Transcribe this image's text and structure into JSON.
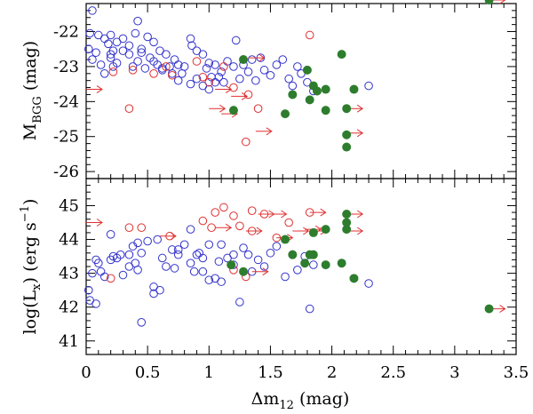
{
  "chart_data": [
    {
      "type": "scatter",
      "panel": "top",
      "xlabel": "",
      "ylabel": "M_BGG (mag)",
      "ylabel_parts": {
        "main": "M",
        "sub": "BGG",
        "unit": "(mag)"
      },
      "xlim": [
        0,
        3.5
      ],
      "ylim": [
        -21.2,
        -26.2
      ],
      "y_inverted": true,
      "yticks": [
        -22,
        -23,
        -24,
        -25,
        -26
      ],
      "ytick_labels": [
        "-22",
        "-23",
        "-24",
        "-25",
        "-26"
      ],
      "xticks_shown": false,
      "colors": {
        "blue": "#3333cc",
        "red": "#e03030",
        "green": "#2e7d2e"
      },
      "series": [
        {
          "marker": "open-circle",
          "color": "blue",
          "points": [
            [
              0.05,
              -21.4
            ],
            [
              0.03,
              -22.05
            ],
            [
              0.1,
              -22.1
            ],
            [
              0.15,
              -22.2
            ],
            [
              0.18,
              -22.35
            ],
            [
              0.2,
              -22.1
            ],
            [
              0.22,
              -22.55
            ],
            [
              0.25,
              -22.3
            ],
            [
              0.3,
              -22.2
            ],
            [
              0.35,
              -22.4
            ],
            [
              0.4,
              -22.05
            ],
            [
              0.42,
              -21.7
            ],
            [
              0.45,
              -22.5
            ],
            [
              0.5,
              -22.15
            ],
            [
              0.55,
              -22.3
            ],
            [
              0.02,
              -22.5
            ],
            [
              0.05,
              -22.8
            ],
            [
              0.08,
              -22.6
            ],
            [
              0.12,
              -22.95
            ],
            [
              0.15,
              -23.2
            ],
            [
              0.2,
              -22.75
            ],
            [
              0.25,
              -22.9
            ],
            [
              0.3,
              -22.55
            ],
            [
              0.35,
              -22.65
            ],
            [
              0.38,
              -23.0
            ],
            [
              0.42,
              -22.85
            ],
            [
              0.45,
              -22.6
            ],
            [
              0.48,
              -23.05
            ],
            [
              0.52,
              -22.75
            ],
            [
              0.55,
              -22.85
            ],
            [
              0.58,
              -22.95
            ],
            [
              0.6,
              -22.55
            ],
            [
              0.62,
              -23.05
            ],
            [
              0.65,
              -22.65
            ],
            [
              0.68,
              -23.0
            ],
            [
              0.72,
              -22.8
            ],
            [
              0.75,
              -22.95
            ],
            [
              0.78,
              -23.2
            ],
            [
              0.8,
              -23.0
            ],
            [
              0.85,
              -22.2
            ],
            [
              0.86,
              -22.4
            ],
            [
              0.9,
              -22.55
            ],
            [
              0.95,
              -22.65
            ],
            [
              0.98,
              -23.05
            ],
            [
              1.0,
              -22.9
            ],
            [
              1.02,
              -23.3
            ],
            [
              1.05,
              -22.95
            ],
            [
              1.08,
              -23.3
            ],
            [
              1.1,
              -23.15
            ],
            [
              1.12,
              -23.45
            ],
            [
              1.15,
              -22.85
            ],
            [
              1.2,
              -23.0
            ],
            [
              1.22,
              -22.25
            ],
            [
              1.25,
              -23.35
            ],
            [
              1.28,
              -22.95
            ],
            [
              1.32,
              -23.15
            ],
            [
              1.35,
              -22.8
            ],
            [
              1.38,
              -23.4
            ],
            [
              1.42,
              -22.75
            ],
            [
              1.45,
              -23.1
            ],
            [
              1.5,
              -23.25
            ],
            [
              1.55,
              -22.95
            ],
            [
              1.6,
              -22.8
            ],
            [
              1.65,
              -23.35
            ],
            [
              1.68,
              -23.55
            ],
            [
              1.72,
              -23.0
            ],
            [
              1.75,
              -23.2
            ],
            [
              1.8,
              -23.45
            ],
            [
              1.85,
              -23.7
            ],
            [
              0.7,
              -23.2
            ],
            [
              0.75,
              -23.4
            ],
            [
              0.85,
              -23.5
            ],
            [
              0.9,
              -23.35
            ],
            [
              0.95,
              -23.55
            ],
            [
              1.0,
              -23.65
            ],
            [
              1.05,
              -23.45
            ],
            [
              0.62,
              -23.1
            ],
            [
              2.3,
              -23.55
            ],
            [
              0.2,
              -22.65
            ],
            [
              0.22,
              -23.0
            ]
          ]
        },
        {
          "marker": "open-circle",
          "color": "red",
          "points": [
            [
              0.22,
              -23.15
            ],
            [
              0.38,
              -23.1
            ],
            [
              0.55,
              -23.2
            ],
            [
              0.65,
              -23.0
            ],
            [
              0.7,
              -23.25
            ],
            [
              0.9,
              -22.85
            ],
            [
              0.95,
              -23.3
            ],
            [
              1.0,
              -23.45
            ],
            [
              1.12,
              -23.0
            ],
            [
              1.32,
              -23.8
            ],
            [
              1.4,
              -24.2
            ],
            [
              1.3,
              -25.15
            ],
            [
              0.35,
              -24.2
            ],
            [
              1.82,
              -22.1
            ],
            [
              1.2,
              -23.6
            ]
          ]
        },
        {
          "marker": "red-arrow",
          "points": [
            [
              0.0,
              -23.65
            ],
            [
              1.05,
              -23.65
            ],
            [
              1.0,
              -24.2
            ],
            [
              1.18,
              -23.85
            ],
            [
              1.1,
              -24.35
            ],
            [
              1.32,
              -22.75
            ],
            [
              1.38,
              -24.85
            ],
            [
              2.12,
              -24.2
            ],
            [
              2.12,
              -24.9
            ],
            [
              3.28,
              -21.1
            ]
          ]
        },
        {
          "marker": "filled-circle",
          "color": "green",
          "points": [
            [
              1.2,
              -24.25
            ],
            [
              1.28,
              -22.8
            ],
            [
              1.62,
              -24.35
            ],
            [
              1.68,
              -23.8
            ],
            [
              1.8,
              -23.1
            ],
            [
              1.82,
              -23.95
            ],
            [
              1.85,
              -23.55
            ],
            [
              1.88,
              -23.7
            ],
            [
              1.95,
              -24.25
            ],
            [
              1.95,
              -23.65
            ],
            [
              2.08,
              -22.65
            ],
            [
              2.12,
              -24.2
            ],
            [
              2.12,
              -24.95
            ],
            [
              2.12,
              -25.3
            ],
            [
              2.18,
              -23.65
            ],
            [
              3.28,
              -21.1
            ]
          ]
        }
      ]
    },
    {
      "type": "scatter",
      "panel": "bottom",
      "xlabel": "Δm12 (mag)",
      "xlabel_parts": {
        "main": "Δm",
        "sub": "12",
        "unit": "(mag)"
      },
      "ylabel": "log(Lx) (erg s-1)",
      "ylabel_parts": {
        "pre": "log(L",
        "sub": "x",
        "mid": ") (erg s",
        "sup": "−1",
        "post": ")"
      },
      "xlim": [
        0,
        3.5
      ],
      "ylim": [
        40.6,
        45.8
      ],
      "xticks": [
        0,
        0.5,
        1,
        1.5,
        2,
        2.5,
        3,
        3.5
      ],
      "xtick_labels": [
        "0",
        "0.5",
        "1",
        "1.5",
        "2",
        "2.5",
        "3",
        "3.5"
      ],
      "yticks": [
        41,
        42,
        43,
        44,
        45
      ],
      "ytick_labels": [
        "41",
        "42",
        "43",
        "44",
        "45"
      ],
      "colors": {
        "blue": "#3333cc",
        "red": "#e03030",
        "green": "#2e7d2e"
      },
      "series": [
        {
          "marker": "open-circle",
          "color": "blue",
          "points": [
            [
              0.02,
              42.5
            ],
            [
              0.05,
              43.0
            ],
            [
              0.03,
              42.2
            ],
            [
              0.08,
              43.4
            ],
            [
              0.1,
              43.3
            ],
            [
              0.08,
              42.1
            ],
            [
              0.15,
              42.9
            ],
            [
              0.2,
              43.4
            ],
            [
              0.22,
              43.5
            ],
            [
              0.25,
              43.45
            ],
            [
              0.28,
              43.55
            ],
            [
              0.3,
              42.95
            ],
            [
              0.35,
              43.2
            ],
            [
              0.38,
              43.8
            ],
            [
              0.4,
              43.3
            ],
            [
              0.42,
              43.9
            ],
            [
              0.45,
              43.6
            ],
            [
              0.45,
              41.55
            ],
            [
              0.5,
              43.95
            ],
            [
              0.55,
              42.6
            ],
            [
              0.55,
              42.4
            ],
            [
              0.6,
              42.5
            ],
            [
              0.62,
              43.45
            ],
            [
              0.65,
              43.2
            ],
            [
              0.7,
              43.7
            ],
            [
              0.72,
              43.15
            ],
            [
              0.75,
              43.55
            ],
            [
              0.8,
              43.85
            ],
            [
              0.85,
              43.3
            ],
            [
              0.88,
              43.05
            ],
            [
              0.9,
              43.55
            ],
            [
              0.92,
              43.6
            ],
            [
              0.95,
              43.05
            ],
            [
              1.0,
              42.8
            ],
            [
              1.05,
              42.85
            ],
            [
              1.08,
              43.35
            ],
            [
              1.1,
              42.75
            ],
            [
              1.15,
              43.45
            ],
            [
              1.2,
              43.55
            ],
            [
              1.25,
              42.15
            ],
            [
              1.28,
              43.75
            ],
            [
              1.32,
              43.55
            ],
            [
              1.35,
              43.05
            ],
            [
              1.4,
              43.4
            ],
            [
              1.45,
              43.2
            ],
            [
              1.5,
              43.6
            ],
            [
              1.55,
              43.8
            ],
            [
              1.62,
              42.9
            ],
            [
              1.68,
              43.55
            ],
            [
              1.72,
              43.1
            ],
            [
              1.78,
              43.5
            ],
            [
              1.85,
              43.25
            ],
            [
              0.42,
              43.1
            ],
            [
              0.2,
              44.15
            ],
            [
              0.58,
              44.0
            ],
            [
              0.75,
              43.7
            ],
            [
              0.85,
              44.3
            ],
            [
              0.95,
              43.45
            ],
            [
              1.1,
              43.85
            ],
            [
              1.0,
              43.85
            ],
            [
              1.2,
              43.25
            ],
            [
              0.12,
              43.05
            ],
            [
              1.82,
              41.95
            ],
            [
              2.3,
              42.7
            ],
            [
              0.35,
              43.55
            ]
          ]
        },
        {
          "marker": "open-circle",
          "color": "red",
          "points": [
            [
              0.35,
              44.35
            ],
            [
              0.45,
              44.35
            ],
            [
              0.68,
              44.1
            ],
            [
              0.95,
              44.55
            ],
            [
              1.02,
              44.35
            ],
            [
              1.05,
              44.8
            ],
            [
              1.12,
              44.95
            ],
            [
              1.2,
              44.7
            ],
            [
              1.35,
              44.85
            ],
            [
              1.45,
              44.75
            ],
            [
              1.55,
              44.05
            ],
            [
              1.65,
              44.5
            ],
            [
              1.82,
              44.8
            ],
            [
              1.2,
              43.1
            ],
            [
              1.3,
              42.9
            ],
            [
              1.35,
              44.25
            ],
            [
              1.25,
              44.4
            ],
            [
              0.2,
              42.85
            ]
          ]
        },
        {
          "marker": "red-arrow",
          "points": [
            [
              0.0,
              44.5
            ],
            [
              0.6,
              44.1
            ],
            [
              1.05,
              44.35
            ],
            [
              1.4,
              44.75
            ],
            [
              1.5,
              44.75
            ],
            [
              1.55,
              44.05
            ],
            [
              1.68,
              44.25
            ],
            [
              1.78,
              44.3
            ],
            [
              1.82,
              44.8
            ],
            [
              1.82,
              44.25
            ],
            [
              2.12,
              44.75
            ],
            [
              2.12,
              44.25
            ],
            [
              1.35,
              43.05
            ],
            [
              3.28,
              41.95
            ],
            [
              1.3,
              44.25
            ]
          ]
        },
        {
          "marker": "filled-circle",
          "color": "green",
          "points": [
            [
              1.18,
              43.25
            ],
            [
              1.28,
              43.05
            ],
            [
              1.62,
              44.0
            ],
            [
              1.68,
              43.55
            ],
            [
              1.78,
              43.3
            ],
            [
              1.82,
              43.55
            ],
            [
              1.85,
              44.2
            ],
            [
              1.85,
              43.55
            ],
            [
              1.95,
              44.3
            ],
            [
              1.95,
              43.25
            ],
            [
              2.08,
              43.3
            ],
            [
              2.12,
              44.75
            ],
            [
              2.12,
              44.5
            ],
            [
              2.12,
              44.3
            ],
            [
              2.18,
              42.85
            ],
            [
              3.28,
              41.95
            ]
          ]
        }
      ]
    }
  ]
}
